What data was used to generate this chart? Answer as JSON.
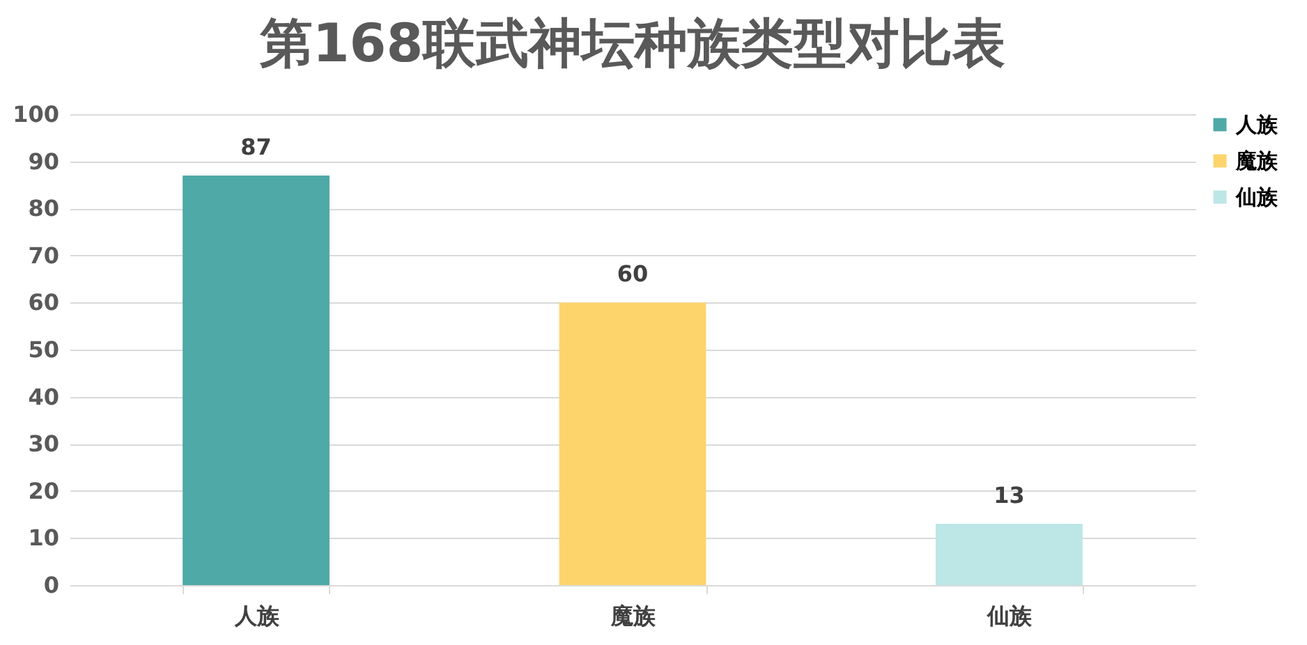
{
  "chart_data": {
    "type": "bar",
    "title": "第168联武神坛种族类型对比表",
    "categories": [
      "人族",
      "魔族",
      "仙族"
    ],
    "series": [
      {
        "name": "人族",
        "color": "#4ea9a7",
        "values": [
          87,
          null,
          null
        ]
      },
      {
        "name": "魔族",
        "color": "#fdd46c",
        "values": [
          null,
          60,
          null
        ]
      },
      {
        "name": "仙族",
        "color": "#bde6e7",
        "values": [
          null,
          null,
          13
        ]
      }
    ],
    "ylim": [
      0,
      100
    ],
    "yticks": [
      0,
      10,
      20,
      30,
      40,
      50,
      60,
      70,
      80,
      90,
      100
    ],
    "grid": "y",
    "legend": "right",
    "data_labels": true
  }
}
